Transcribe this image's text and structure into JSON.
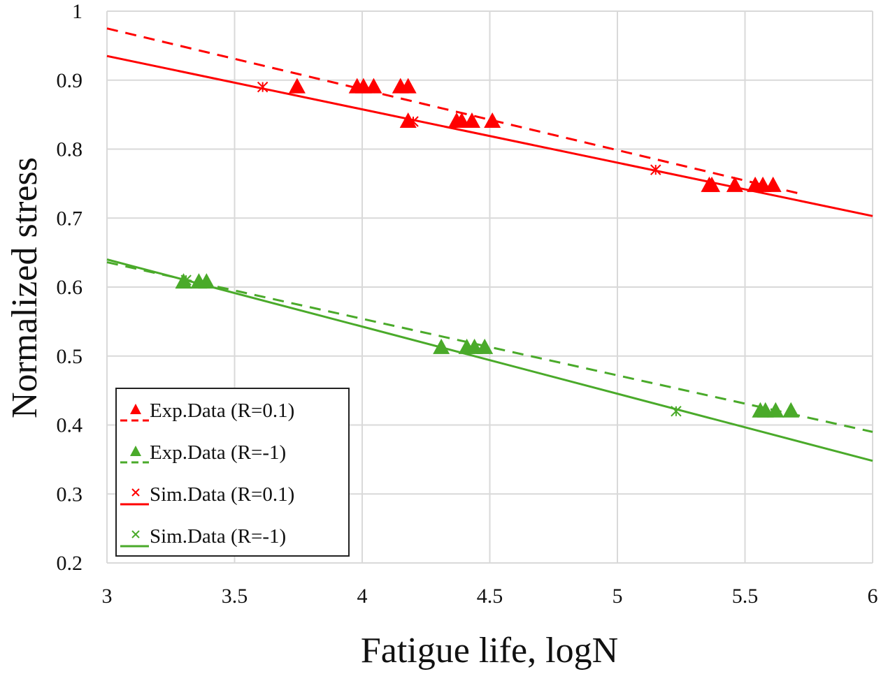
{
  "chart_data": {
    "type": "scatter",
    "title": "",
    "xlabel": "Fatigue life, logN",
    "ylabel": "Normalized stress",
    "xlim": [
      3,
      6
    ],
    "ylim": [
      0.2,
      1.0
    ],
    "xticks": [
      3,
      3.5,
      4,
      4.5,
      5,
      5.5,
      6
    ],
    "xtick_labels": [
      "3",
      "3.5",
      "4",
      "4.5",
      "5",
      "5.5",
      "6"
    ],
    "yticks": [
      0.2,
      0.3,
      0.4,
      0.5,
      0.6,
      0.7,
      0.8,
      0.9,
      1.0
    ],
    "ytick_labels": [
      "0.2",
      "0.3",
      "0.4",
      "0.5",
      "0.6",
      "0.7",
      "0.8",
      "0.9",
      "1"
    ],
    "grid": true,
    "legend_position": "bottom-left",
    "colors": {
      "red": "#ff0000",
      "green": "#4aaa2a",
      "grid": "#d9d9d9"
    },
    "series": [
      {
        "name": "Exp.Data (R=0.1)",
        "color": "red",
        "marker": "triangle",
        "trendline": "dashed",
        "points": [
          [
            3.745,
            0.89
          ],
          [
            3.98,
            0.89
          ],
          [
            4.005,
            0.89
          ],
          [
            4.045,
            0.89
          ],
          [
            4.15,
            0.89
          ],
          [
            4.18,
            0.89
          ],
          [
            4.18,
            0.84
          ],
          [
            4.37,
            0.84
          ],
          [
            4.39,
            0.84
          ],
          [
            4.43,
            0.84
          ],
          [
            4.51,
            0.84
          ],
          [
            5.36,
            0.747
          ],
          [
            5.37,
            0.747
          ],
          [
            5.46,
            0.747
          ],
          [
            5.54,
            0.747
          ],
          [
            5.57,
            0.747
          ],
          [
            5.61,
            0.747
          ]
        ],
        "trend": [
          [
            3.0,
            0.975
          ],
          [
            5.72,
            0.735
          ]
        ]
      },
      {
        "name": "Exp.Data (R=-1)",
        "color": "green",
        "marker": "triangle",
        "trendline": "dashed",
        "points": [
          [
            3.3,
            0.607
          ],
          [
            3.36,
            0.607
          ],
          [
            3.39,
            0.607
          ],
          [
            4.31,
            0.512
          ],
          [
            4.41,
            0.512
          ],
          [
            4.44,
            0.512
          ],
          [
            4.48,
            0.512
          ],
          [
            5.56,
            0.42
          ],
          [
            5.58,
            0.42
          ],
          [
            5.62,
            0.42
          ],
          [
            5.68,
            0.42
          ]
        ],
        "trend": [
          [
            3.0,
            0.636
          ],
          [
            6.0,
            0.39
          ]
        ]
      },
      {
        "name": "Sim.Data (R=0.1)",
        "color": "red",
        "marker": "asterisk",
        "trendline": "solid",
        "points": [
          [
            3.61,
            0.89
          ],
          [
            4.2,
            0.84
          ],
          [
            5.15,
            0.77
          ]
        ],
        "trend": [
          [
            3.0,
            0.935
          ],
          [
            6.0,
            0.703
          ]
        ]
      },
      {
        "name": "Sim.Data (R=-1)",
        "color": "green",
        "marker": "asterisk",
        "trendline": "solid",
        "points": [
          [
            3.31,
            0.61
          ],
          [
            5.23,
            0.42
          ]
        ],
        "trend": [
          [
            3.0,
            0.64
          ],
          [
            6.0,
            0.348
          ]
        ]
      }
    ]
  }
}
